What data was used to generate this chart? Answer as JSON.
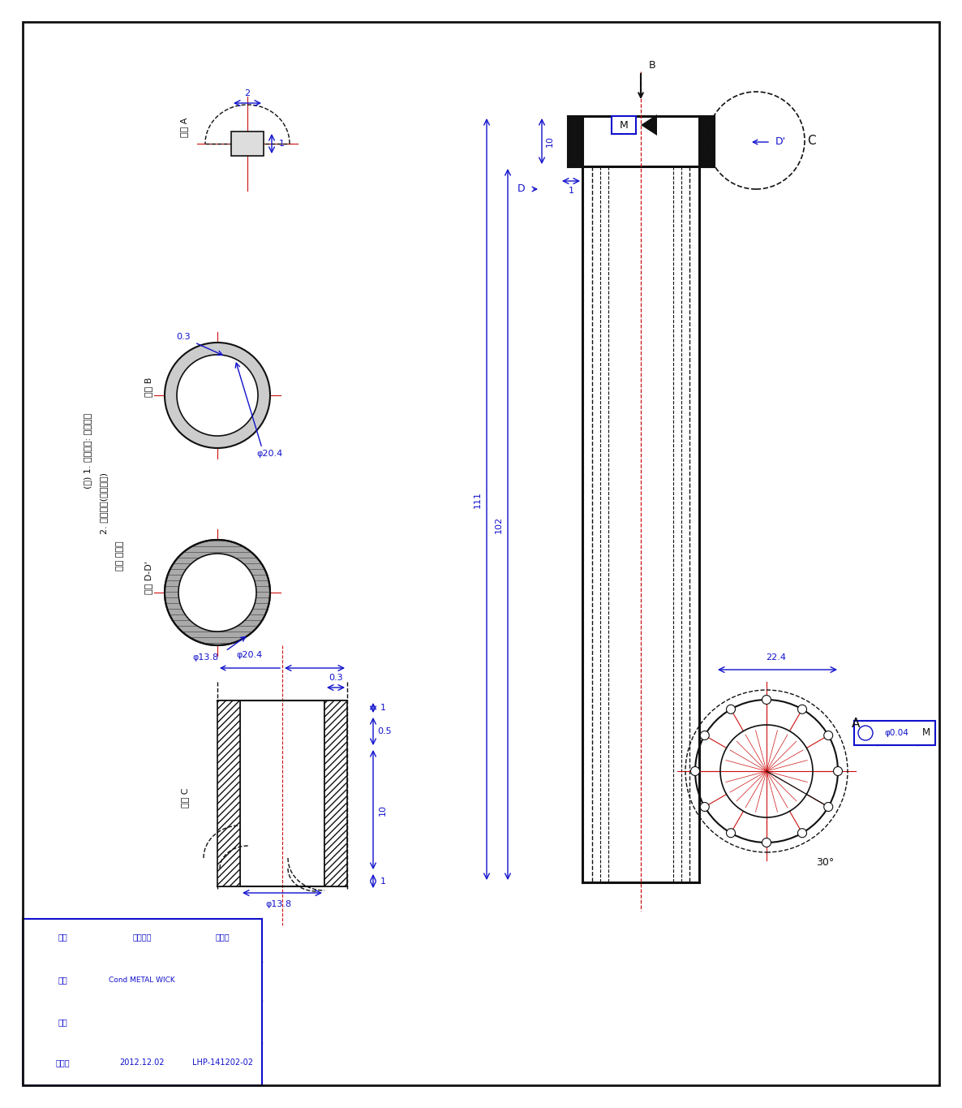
{
  "bg_color": "#ffffff",
  "blue": "#1010cc",
  "red": "#cc1010",
  "black": "#101010",
  "title_block": {
    "part_name": "Cond METAL WICK",
    "part_num": "LHP-141202-02",
    "date": "2012.12.02",
    "row1_col1": "직종",
    "row1_col2": "담당자명",
    "row1_col3": "검토일",
    "row2_col1": "설계",
    "row3_col1": "검토",
    "row4_col1": "스케일"
  },
  "notes": [
    "(주) 1. 표면처리: 자내층면",
    "2. 금속사망(적층정도)",
    "절은 전밀도"
  ],
  "section_labels": {
    "A": "단면 A",
    "B": "단면 B",
    "DD": "단면 D-D'",
    "C": "단면 C"
  },
  "dims": {
    "d_outer": "φ20.4",
    "d_inner": "φ13.8",
    "wall_t": "0.3",
    "cap_h": "10",
    "cap_t1": "1",
    "flange_h": "0.5",
    "bot_t": "1",
    "body_len": "102",
    "total_len": "111",
    "width": "22.4",
    "tol": "φ0.04",
    "angle": "30°",
    "dim2": "2",
    "dim1": "1"
  }
}
